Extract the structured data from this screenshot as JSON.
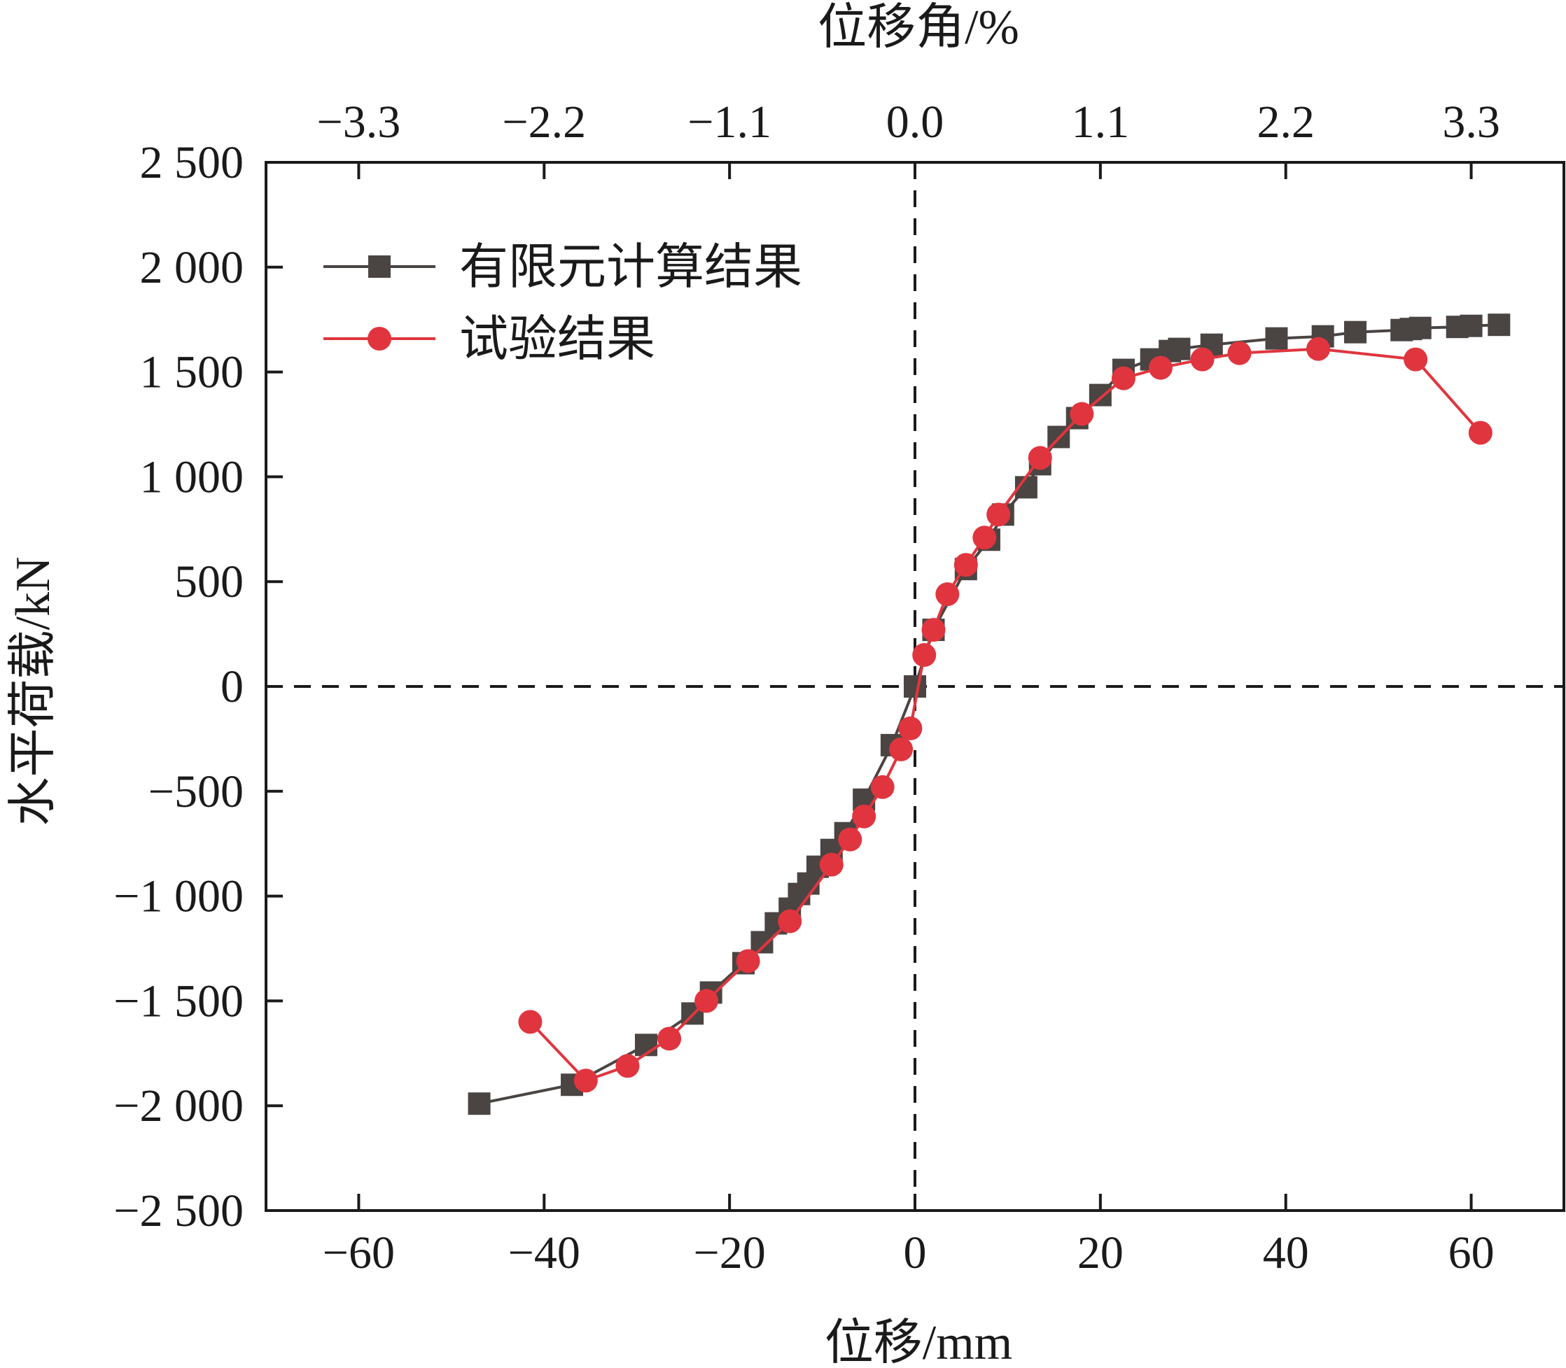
{
  "chart_data": {
    "type": "line",
    "xlabel": "位移/mm",
    "ylabel": "水平荷载/kN",
    "top_xlabel": "位移角/%",
    "xlim": [
      -70,
      70
    ],
    "ylim": [
      -2500,
      2500
    ],
    "x_ticks": [
      -60,
      -40,
      -20,
      0,
      20,
      40,
      60
    ],
    "x_tick_labels": [
      "−60",
      "−40",
      "−20",
      "0",
      "20",
      "40",
      "60"
    ],
    "y_ticks": [
      2500,
      2000,
      1500,
      1000,
      500,
      0,
      -500,
      -1000,
      -1500,
      -2000,
      -2500
    ],
    "y_tick_labels": [
      "2 500",
      "2 000",
      "1 500",
      "1 000",
      "500",
      "0",
      "−500",
      "−1 000",
      "−1 500",
      "−2 000",
      "−2 500"
    ],
    "top_x_ticks": [
      -3.3,
      -2.2,
      -1.1,
      0.0,
      1.1,
      2.2,
      3.3
    ],
    "top_x_tick_labels": [
      "−3.3",
      "−2.2",
      "−1.1",
      "0.0",
      "1.1",
      "2.2",
      "3.3"
    ],
    "legend_position": "top-left",
    "grid": false,
    "reference_lines": [
      "x = 0 (dashed)",
      "y = 0 (dashed)"
    ],
    "series": [
      {
        "name": "有限元计算结果",
        "color": "#4a4442",
        "marker": "square",
        "x": [
          -47.0,
          -37.0,
          -29.0,
          -24.0,
          -22.0,
          -18.5,
          -16.5,
          -15.0,
          -13.5,
          -12.5,
          -11.5,
          -10.5,
          -9.0,
          -7.5,
          -5.5,
          -2.5,
          0,
          2.0,
          5.5,
          8.0,
          9.5,
          12.0,
          13.5,
          15.5,
          17.5,
          20.0,
          22.5,
          25.5,
          27.5,
          28.5,
          32.0,
          39.0,
          44.0,
          47.5,
          52.5,
          53.5,
          54.5,
          58.5,
          60.0,
          63.0
        ],
        "y": [
          -1990,
          -1900,
          -1710,
          -1560,
          -1460,
          -1320,
          -1220,
          -1130,
          -1060,
          -990,
          -940,
          -860,
          -780,
          -700,
          -540,
          -280,
          0,
          270,
          560,
          700,
          820,
          950,
          1060,
          1190,
          1280,
          1390,
          1510,
          1560,
          1600,
          1610,
          1630,
          1660,
          1670,
          1690,
          1700,
          1705,
          1710,
          1715,
          1720,
          1725
        ]
      },
      {
        "name": "试验结果",
        "color": "#e0353e",
        "marker": "circle",
        "x": [
          -41.5,
          -35.5,
          -31.0,
          -26.5,
          -22.5,
          -18.0,
          -13.5,
          -9.0,
          -7.0,
          -5.5,
          -3.5,
          -1.5,
          -0.5,
          1.0,
          2.0,
          3.5,
          5.5,
          7.5,
          9.0,
          13.5,
          18.0,
          22.5,
          26.5,
          31.0,
          35.0,
          43.5,
          54.0,
          61.0
        ],
        "y": [
          -1600,
          -1880,
          -1810,
          -1680,
          -1500,
          -1310,
          -1120,
          -850,
          -730,
          -620,
          -480,
          -300,
          -200,
          150,
          270,
          440,
          580,
          710,
          820,
          1090,
          1300,
          1470,
          1520,
          1560,
          1590,
          1610,
          1560,
          1210
        ]
      }
    ]
  }
}
